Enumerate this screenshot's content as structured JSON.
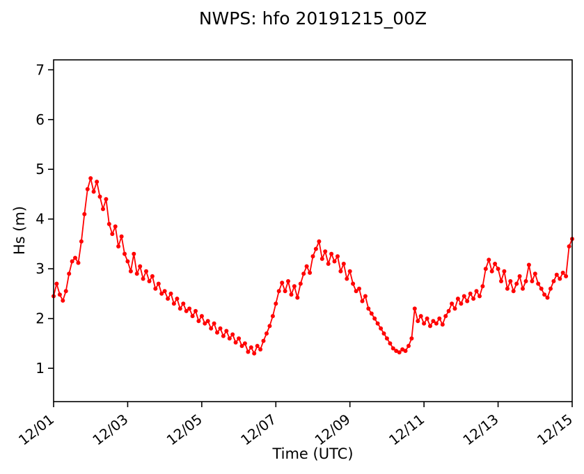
{
  "chart_data": {
    "type": "line",
    "title": "NWPS: hfo 20191215_00Z",
    "xlabel": "Time (UTC)",
    "ylabel": "Hs (m)",
    "line_color": "#ff0000",
    "marker": "circle",
    "background": "#ffffff",
    "axis_color": "#000000",
    "grid": false,
    "legend": "none",
    "x_tick_labels": [
      "12/01",
      "12/03",
      "12/05",
      "12/07",
      "12/09",
      "12/11",
      "12/13",
      "12/15"
    ],
    "x_tick_days": [
      0,
      2,
      4,
      6,
      8,
      10,
      12,
      14
    ],
    "y_ticks": [
      1,
      2,
      3,
      4,
      5,
      6,
      7
    ],
    "xlim_days": [
      0,
      14
    ],
    "ylim": [
      0.33,
      7.2
    ],
    "x_start": "12/01 00:00 UTC",
    "x_step_hours": 2,
    "hs_m": [
      2.45,
      2.7,
      2.48,
      2.36,
      2.55,
      2.9,
      3.15,
      3.22,
      3.12,
      3.55,
      4.1,
      4.6,
      4.82,
      4.55,
      4.75,
      4.45,
      4.2,
      4.4,
      3.9,
      3.7,
      3.85,
      3.45,
      3.65,
      3.3,
      3.15,
      2.95,
      3.3,
      2.9,
      3.05,
      2.8,
      2.95,
      2.75,
      2.85,
      2.6,
      2.7,
      2.5,
      2.55,
      2.4,
      2.5,
      2.3,
      2.4,
      2.2,
      2.3,
      2.15,
      2.2,
      2.05,
      2.15,
      1.95,
      2.05,
      1.9,
      1.95,
      1.8,
      1.9,
      1.72,
      1.8,
      1.65,
      1.75,
      1.6,
      1.68,
      1.52,
      1.6,
      1.45,
      1.5,
      1.33,
      1.42,
      1.3,
      1.45,
      1.38,
      1.55,
      1.7,
      1.85,
      2.05,
      2.3,
      2.55,
      2.72,
      2.55,
      2.75,
      2.48,
      2.65,
      2.42,
      2.7,
      2.9,
      3.05,
      2.92,
      3.25,
      3.4,
      3.55,
      3.2,
      3.35,
      3.1,
      3.3,
      3.15,
      3.25,
      2.95,
      3.1,
      2.8,
      2.95,
      2.7,
      2.55,
      2.6,
      2.35,
      2.45,
      2.2,
      2.1,
      2.0,
      1.9,
      1.8,
      1.7,
      1.6,
      1.5,
      1.4,
      1.35,
      1.32,
      1.38,
      1.35,
      1.45,
      1.6,
      2.2,
      1.95,
      2.05,
      1.9,
      2.0,
      1.85,
      1.95,
      1.9,
      2.0,
      1.88,
      2.05,
      2.15,
      2.3,
      2.2,
      2.4,
      2.3,
      2.45,
      2.35,
      2.5,
      2.4,
      2.55,
      2.45,
      2.65,
      3.0,
      3.18,
      2.95,
      3.1,
      3.0,
      2.75,
      2.95,
      2.6,
      2.75,
      2.55,
      2.7,
      2.85,
      2.6,
      2.75,
      3.08,
      2.75,
      2.9,
      2.7,
      2.6,
      2.48,
      2.42,
      2.6,
      2.75,
      2.88,
      2.8,
      2.92,
      2.85,
      3.45,
      3.6
    ]
  }
}
